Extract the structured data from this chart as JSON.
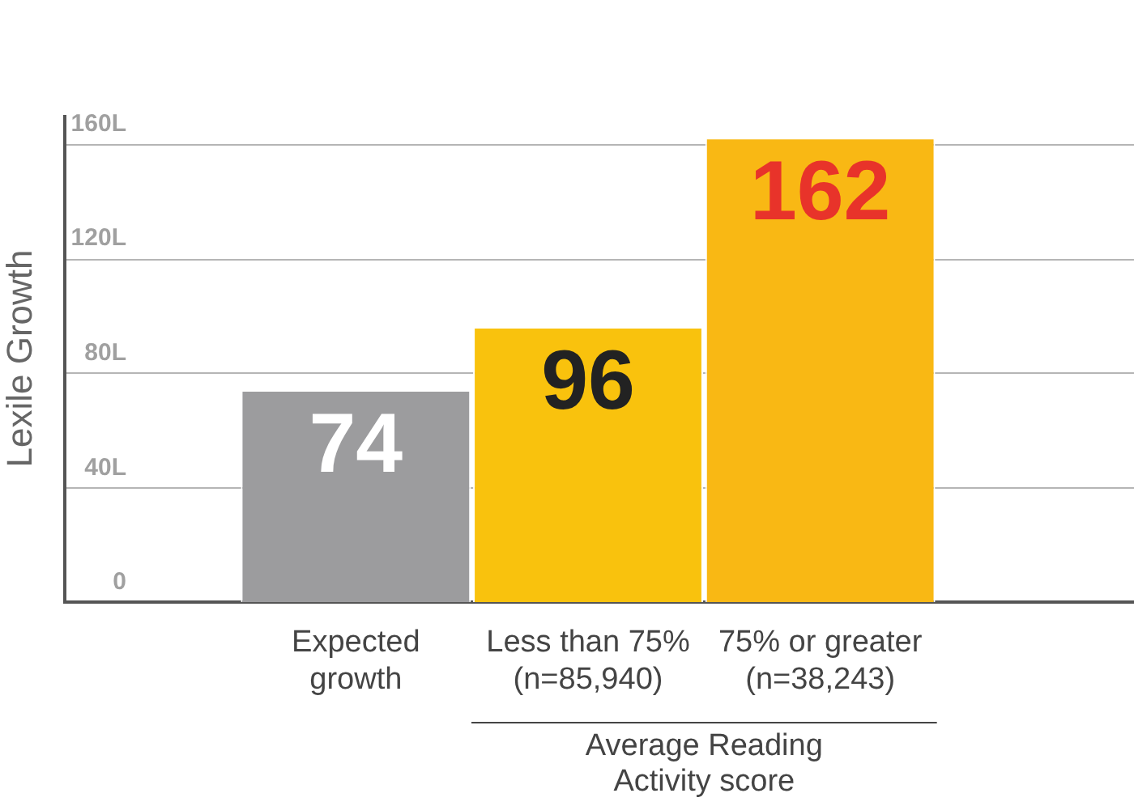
{
  "chart_data": {
    "type": "bar",
    "ylabel": "Lexile Growth",
    "categories": [
      "Expected growth",
      "Less than 75% (n=85,940)",
      "75% or greater (n=38,243)"
    ],
    "values": [
      74,
      96,
      162
    ],
    "colors": [
      "#9c9c9e",
      "#f9c20d",
      "#f9b814"
    ],
    "ylim": [
      0,
      170
    ],
    "yticks": [
      0,
      {
        "value": 40,
        "label": "40L"
      },
      {
        "value": 80,
        "label": "80L"
      },
      {
        "value": 120,
        "label": "120L"
      },
      {
        "value": 160,
        "label": "160L"
      }
    ],
    "grid": "y",
    "legend": false,
    "data_labels": true,
    "annotations": [
      "Average Reading Activity score"
    ]
  }
}
